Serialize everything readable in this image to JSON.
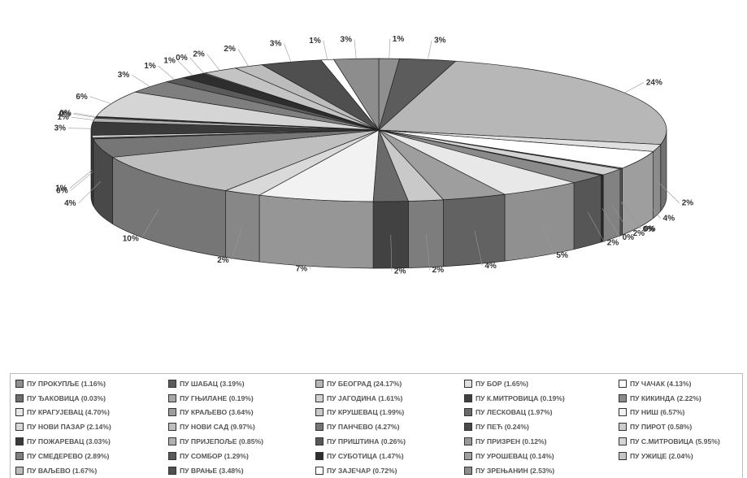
{
  "chart_data": {
    "type": "pie",
    "title": "",
    "style": "3d exploded-view pie, greyscale fills",
    "legend_position": "bottom",
    "slices": [
      {
        "label": "ПУ ПРОКУПЉЕ (1.16%)",
        "value": 1.16,
        "color": "#8f8f8f"
      },
      {
        "label": "ПУ ШАБАЦ (3.19%)",
        "value": 3.19,
        "color": "#5c5c5c"
      },
      {
        "label": "ПУ БЕОГРАД (24.17%)",
        "value": 24.17,
        "color": "#b7b7b7"
      },
      {
        "label": "ПУ БОР (1.65%)",
        "value": 1.65,
        "color": "#e0e0e0"
      },
      {
        "label": "ПУ ЧАЧАК (4.13%)",
        "value": 4.13,
        "color": "#ffffff"
      },
      {
        "label": "ПУ ЂАКОВИЦА (0.03%)",
        "value": 0.03,
        "color": "#6d6d6d"
      },
      {
        "label": "ПУ ГЊИЛАНЕ (0.19%)",
        "value": 0.19,
        "color": "#a6a6a6"
      },
      {
        "label": "ПУ ЈАГОДИНА (1.61%)",
        "value": 1.61,
        "color": "#d2d2d2"
      },
      {
        "label": "ПУ К.МИТРОВИЦА (0.19%)",
        "value": 0.19,
        "color": "#3f3f3f"
      },
      {
        "label": "ПУ КИКИНДА (2.22%)",
        "value": 2.22,
        "color": "#8a8a8a"
      },
      {
        "label": "ПУ КРАГУЈЕВАЦ (4.70%)",
        "value": 4.7,
        "color": "#e8e8e8"
      },
      {
        "label": "ПУ КРАЉЕВО (3.64%)",
        "value": 3.64,
        "color": "#9e9e9e"
      },
      {
        "label": "ПУ КРУШЕВАЦ (1.99%)",
        "value": 1.99,
        "color": "#c9c9c9"
      },
      {
        "label": "ПУ ЛЕСКОВАЦ (1.97%)",
        "value": 1.97,
        "color": "#6a6a6a"
      },
      {
        "label": "ПУ НИШ (6.57%)",
        "value": 6.57,
        "color": "#f2f2f2"
      },
      {
        "label": "ПУ НОВИ ПАЗАР (2.14%)",
        "value": 2.14,
        "color": "#d9d9d9"
      },
      {
        "label": "ПУ НОВИ САД (9.97%)",
        "value": 9.97,
        "color": "#bfbfbf"
      },
      {
        "label": "ПУ ПАНЧЕВО (4.27%)",
        "value": 4.27,
        "color": "#767676"
      },
      {
        "label": "ПУ ПЕЋ (0.24%)",
        "value": 0.24,
        "color": "#4a4a4a"
      },
      {
        "label": "ПУ ПИРОТ (0.58%)",
        "value": 0.58,
        "color": "#cccccc"
      },
      {
        "label": "ПУ ПОЖАРЕВАЦ (3.03%)",
        "value": 3.03,
        "color": "#3a3a3a"
      },
      {
        "label": "ПУ ПРИЈЕПОЉЕ (0.85%)",
        "value": 0.85,
        "color": "#b0b0b0"
      },
      {
        "label": "ПУ ПРИШТИНА (0.26%)",
        "value": 0.26,
        "color": "#585858"
      },
      {
        "label": "ПУ ПРИЗРЕН (0.12%)",
        "value": 0.12,
        "color": "#9a9a9a"
      },
      {
        "label": "ПУ С.МИТРОВИЦА (5.95%)",
        "value": 5.95,
        "color": "#d5d5d5"
      },
      {
        "label": "ПУ СМЕДЕРЕВО (2.89%)",
        "value": 2.89,
        "color": "#7f7f7f"
      },
      {
        "label": "ПУ СОМБОР (1.29%)",
        "value": 1.29,
        "color": "#5a5a5a"
      },
      {
        "label": "ПУ СУБОТИЦА (1.47%)",
        "value": 1.47,
        "color": "#2e2e2e"
      },
      {
        "label": "ПУ УРОШЕВАЦ (0.14%)",
        "value": 0.14,
        "color": "#a0a0a0"
      },
      {
        "label": "ПУ УЖИЦЕ (2.04%)",
        "value": 2.04,
        "color": "#c4c4c4"
      },
      {
        "label": "ПУ ВАЉЕВО (1.67%)",
        "value": 1.67,
        "color": "#bcbcbc"
      },
      {
        "label": "ПУ ВРАЊЕ (3.48%)",
        "value": 3.48,
        "color": "#4f4f4f"
      },
      {
        "label": "ПУ ЗАЈЕЧАР (0.72%)",
        "value": 0.72,
        "color": "#ffffff"
      },
      {
        "label": "ПУ ЗРЕЊАНИН (2.53%)",
        "value": 2.53,
        "color": "#8d8d8d"
      }
    ]
  }
}
